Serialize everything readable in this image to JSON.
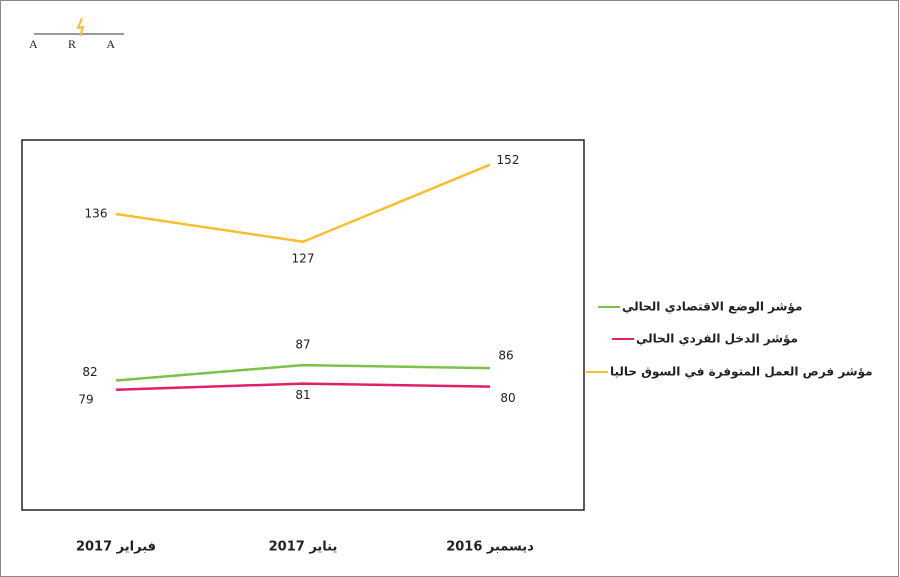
{
  "logo": "A R A",
  "chart_data": {
    "type": "line",
    "categories": [
      "فبراير 2017",
      "يناير 2017",
      "ديسمبر 2016"
    ],
    "series": [
      {
        "name": "مؤشر الوضع الاقتصادي الحالي",
        "color": "#7cc24a",
        "values": [
          82,
          87,
          86
        ]
      },
      {
        "name": "مؤشر الدخل الفردي الحالي",
        "color": "#e0206a",
        "values": [
          79,
          81,
          80
        ]
      },
      {
        "name": "مؤشر فرص العمل المتوفرة في السوق حاليا",
        "color": "#f6bf2c",
        "values": [
          136,
          127,
          152
        ]
      }
    ],
    "ylim": [
      40,
      160
    ],
    "legend": "right"
  }
}
